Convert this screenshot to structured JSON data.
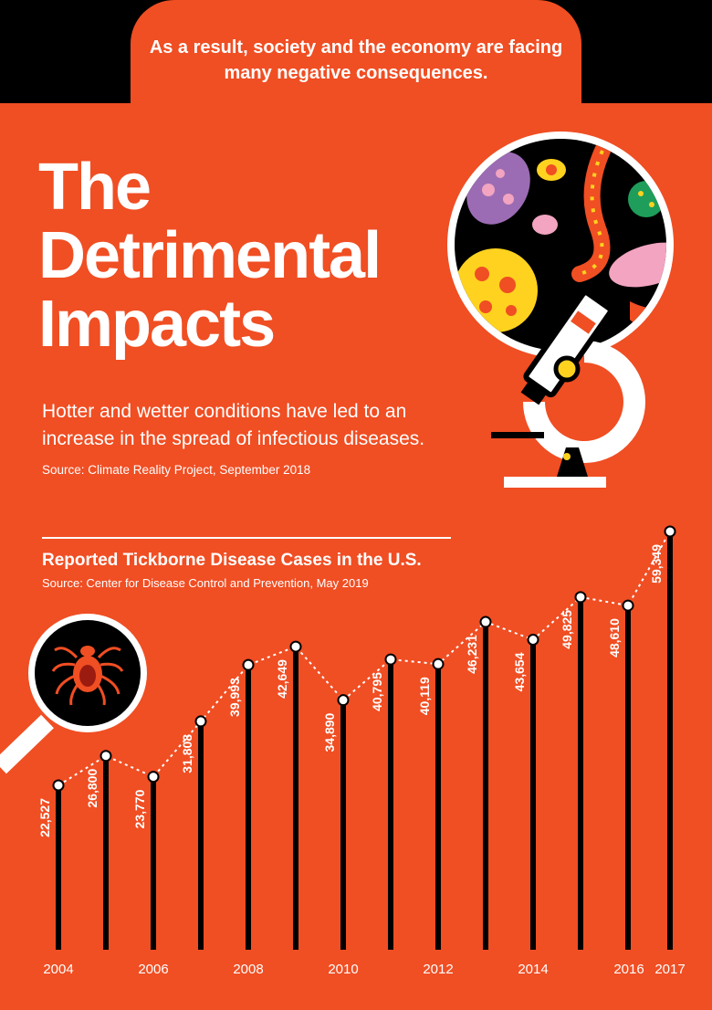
{
  "banner": {
    "text": "As a result, society and the economy are facing many negative consequences."
  },
  "header": {
    "title_lines": [
      "The",
      "Detrimental",
      "Impacts"
    ],
    "intro": "Hotter and wetter conditions have led to an increase in the spread of infectious diseases.",
    "source": "Source: Climate Reality Project, September 2018"
  },
  "colors": {
    "background": "#F04E23",
    "bar": "#000000",
    "text": "#FFFFFF"
  },
  "icons": [
    "microscope-icon",
    "microbes-icon",
    "magnifier-icon",
    "tick-icon"
  ],
  "chart_data": {
    "type": "line",
    "title": "Reported Tickborne Disease Cases in the U.S.",
    "subtitle": "Source: Center for Disease Control and Prevention, May 2019",
    "x": [
      2004,
      2005,
      2006,
      2007,
      2008,
      2009,
      2010,
      2011,
      2012,
      2013,
      2014,
      2015,
      2016,
      2017
    ],
    "values": [
      22527,
      26800,
      23770,
      31808,
      39993,
      42649,
      34890,
      40795,
      40119,
      46231,
      43654,
      49825,
      48610,
      59349
    ],
    "value_labels": [
      "22,527",
      "26,800",
      "23,770",
      "31,808",
      "39,993",
      "42,649",
      "34,890",
      "40,795",
      "40,119",
      "46,231",
      "43,654",
      "49,825",
      "48,610",
      "59,349"
    ],
    "x_tick_labels": [
      "2004",
      "2006",
      "2008",
      "2010",
      "2012",
      "2014",
      "2016",
      "2017"
    ],
    "ylim": [
      0,
      60000
    ],
    "grid": false,
    "legend": "none"
  }
}
